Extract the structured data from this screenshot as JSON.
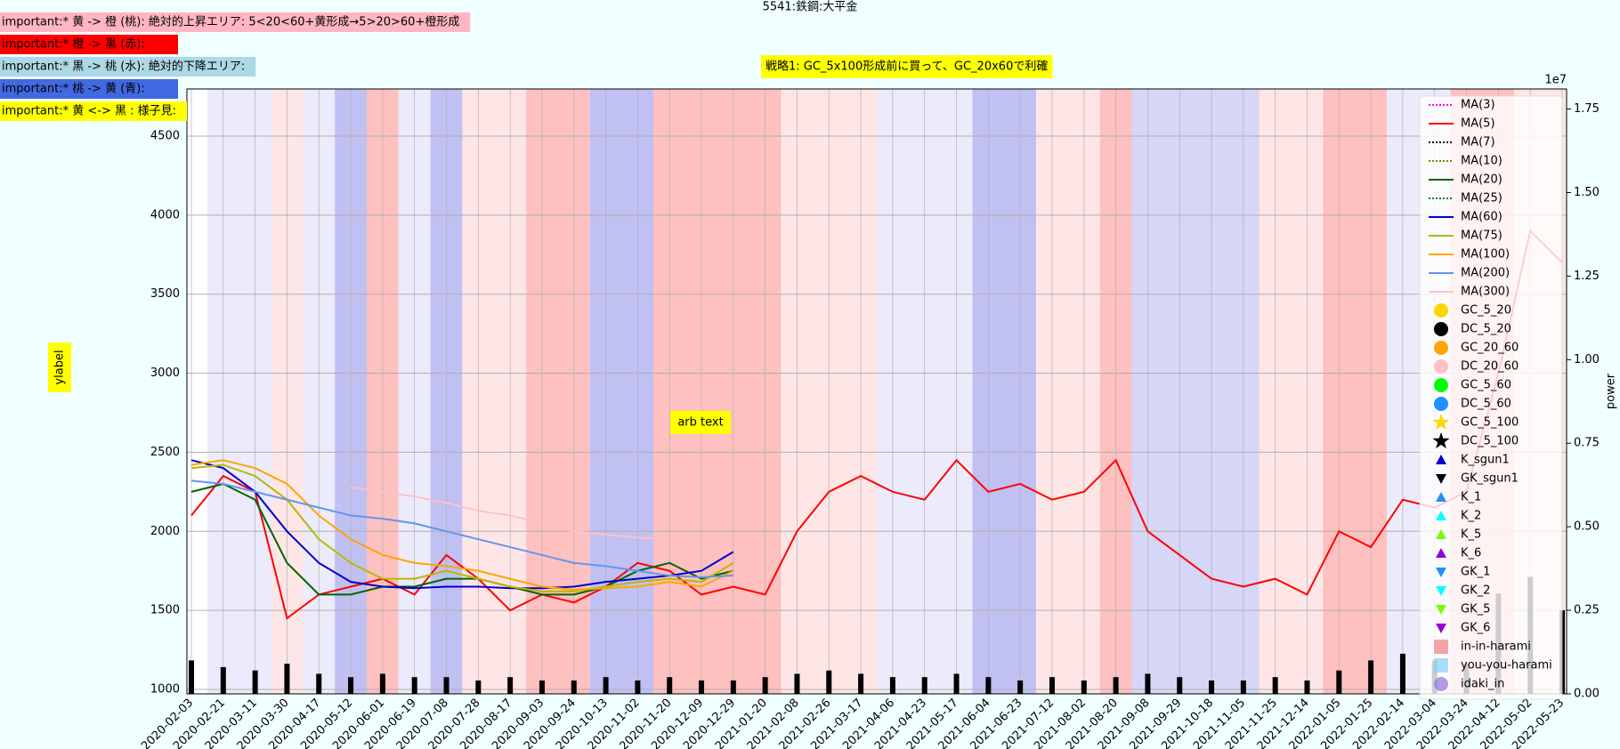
{
  "chart_data": {
    "type": "line",
    "title": "5541:鉄鋼:大平金",
    "annotations": [
      {
        "text": "important:* 黄 -> 橙 (桃): 絶対的上昇エリア: 5<20<60+黄形成→5>20>60+橙形成",
        "color": "#ffb6c1"
      },
      {
        "text": "important:* 橙 -> 黒 (赤):",
        "color": "#ff0000"
      },
      {
        "text": "important:* 黒 -> 桃 (水): 絶対的下降エリア:",
        "color": "#add8e6"
      },
      {
        "text": "important:* 桃 -> 黄 (青):",
        "color": "#4169e1"
      },
      {
        "text": "important:* 黄 <-> 黒 : 様子見:",
        "color": "#ffff00"
      }
    ],
    "strategy_text": "戦略1: GC_5x100形成前に買って、GC_20x60で利確",
    "arb_text": "arb text",
    "ylabel": "ylabel",
    "y2label": "power",
    "y2_offset_label": "1e7",
    "x": [
      "2020-02-03",
      "2020-02-21",
      "2020-03-11",
      "2020-03-30",
      "2020-04-17",
      "2020-05-12",
      "2020-06-01",
      "2020-06-19",
      "2020-07-08",
      "2020-07-28",
      "2020-08-17",
      "2020-09-03",
      "2020-09-24",
      "2020-10-13",
      "2020-11-02",
      "2020-11-20",
      "2020-12-09",
      "2020-12-29",
      "2021-01-20",
      "2021-02-08",
      "2021-02-26",
      "2021-03-17",
      "2021-04-06",
      "2021-04-23",
      "2021-05-17",
      "2021-06-04",
      "2021-06-23",
      "2021-07-12",
      "2021-08-02",
      "2021-08-20",
      "2021-09-08",
      "2021-09-29",
      "2021-10-18",
      "2021-11-05",
      "2021-11-25",
      "2021-12-14",
      "2022-01-05",
      "2022-01-25",
      "2022-02-14",
      "2022-03-04",
      "2022-03-24",
      "2022-04-12",
      "2022-05-02",
      "2022-05-23"
    ],
    "series": [
      {
        "name": "MA(3)",
        "color": "#ff00ff",
        "dash": "2,2",
        "values": [
          null,
          null,
          null,
          null,
          null,
          null,
          null,
          null,
          null,
          null,
          null,
          null,
          null,
          null,
          null,
          null,
          null,
          null,
          null,
          null,
          null,
          null,
          null,
          null,
          null,
          null,
          null,
          null,
          null,
          null,
          null,
          null,
          null,
          null,
          null,
          null,
          null,
          null,
          null,
          null,
          null,
          null,
          null,
          null
        ]
      },
      {
        "name": "MA(5)",
        "color": "#ff0000",
        "dash": "",
        "values": [
          2100,
          2350,
          2250,
          1450,
          1600,
          1650,
          1700,
          1600,
          1850,
          1700,
          1500,
          1600,
          1550,
          1650,
          1800,
          1750,
          1600,
          1650,
          1600,
          2000,
          2250,
          2350,
          2250,
          2200,
          2450,
          2250,
          2300,
          2200,
          2250,
          2450,
          2000,
          1850,
          1700,
          1650,
          1700,
          1600,
          2000,
          1900,
          2200,
          2150,
          2250,
          3000,
          3900,
          3700
        ]
      },
      {
        "name": "MA(7)",
        "color": "#000000",
        "dash": "2,2",
        "values": [
          null,
          null,
          null,
          null,
          null,
          null,
          null,
          null,
          null,
          null,
          null,
          null,
          null,
          null,
          null,
          null,
          null,
          null,
          null,
          null,
          null,
          null,
          null,
          null,
          null,
          null,
          null,
          null,
          null,
          null,
          null,
          null,
          null,
          null,
          null,
          null,
          null,
          null,
          null,
          null,
          null,
          null,
          null,
          null
        ]
      },
      {
        "name": "MA(10)",
        "color": "#808000",
        "dash": "2,2",
        "values": [
          null,
          null,
          null,
          null,
          null,
          null,
          null,
          null,
          null,
          null,
          null,
          null,
          null,
          null,
          null,
          null,
          null,
          null,
          null,
          null,
          null,
          null,
          null,
          null,
          null,
          null,
          null,
          null,
          null,
          null,
          null,
          null,
          null,
          null,
          null,
          null,
          null,
          null,
          null,
          null,
          null,
          null,
          null,
          null
        ]
      },
      {
        "name": "MA(20)",
        "color": "#006400",
        "dash": "",
        "values": [
          2250,
          2300,
          2200,
          1800,
          1600,
          1600,
          1650,
          1650,
          1700,
          1700,
          1650,
          1600,
          1600,
          1650,
          1750,
          1800,
          1700,
          1750,
          null,
          null,
          null,
          null,
          null,
          null,
          null,
          null,
          null,
          null,
          null,
          null,
          null,
          null,
          null,
          null,
          null,
          null,
          null,
          null,
          null,
          null,
          null,
          null,
          null,
          null
        ]
      },
      {
        "name": "MA(25)",
        "color": "#008000",
        "dash": "2,2",
        "values": [
          null,
          null,
          null,
          null,
          null,
          null,
          null,
          null,
          null,
          null,
          null,
          null,
          null,
          null,
          null,
          null,
          null,
          null,
          null,
          null,
          null,
          null,
          null,
          null,
          null,
          null,
          null,
          null,
          null,
          null,
          null,
          null,
          null,
          null,
          null,
          null,
          null,
          null,
          null,
          null,
          null,
          null,
          null,
          null
        ]
      },
      {
        "name": "MA(60)",
        "color": "#0000cd",
        "dash": "",
        "values": [
          2450,
          2400,
          2250,
          2000,
          1800,
          1680,
          1650,
          1640,
          1650,
          1650,
          1640,
          1640,
          1650,
          1680,
          1700,
          1720,
          1750,
          1870,
          null,
          null,
          null,
          null,
          null,
          null,
          null,
          null,
          null,
          null,
          null,
          null,
          null,
          null,
          null,
          null,
          null,
          null,
          null,
          null,
          null,
          null,
          null,
          null,
          null,
          null
        ]
      },
      {
        "name": "MA(75)",
        "color": "#b8b800",
        "dash": "",
        "values": [
          2400,
          2420,
          2350,
          2200,
          1950,
          1800,
          1700,
          1700,
          1750,
          1700,
          1650,
          1620,
          1620,
          1650,
          1680,
          1700,
          1680,
          1800,
          null,
          null,
          null,
          null,
          null,
          null,
          null,
          null,
          null,
          null,
          null,
          null,
          null,
          null,
          null,
          null,
          null,
          null,
          null,
          null,
          null,
          null,
          null,
          null,
          null,
          null
        ]
      },
      {
        "name": "MA(100)",
        "color": "#ffa500",
        "dash": "",
        "values": [
          2420,
          2450,
          2400,
          2300,
          2100,
          1950,
          1850,
          1800,
          1780,
          1750,
          1700,
          1650,
          1630,
          1640,
          1650,
          1680,
          1650,
          1750,
          null,
          null,
          null,
          null,
          null,
          null,
          null,
          null,
          null,
          null,
          null,
          null,
          null,
          null,
          null,
          null,
          null,
          null,
          null,
          null,
          null,
          null,
          null,
          null,
          null,
          null
        ]
      },
      {
        "name": "MA(200)",
        "color": "#6495ed",
        "dash": "",
        "values": [
          2320,
          2300,
          2250,
          2200,
          2150,
          2100,
          2080,
          2050,
          2000,
          1950,
          1900,
          1850,
          1800,
          1780,
          1750,
          1720,
          1710,
          1720,
          null,
          null,
          null,
          null,
          null,
          null,
          null,
          null,
          null,
          null,
          null,
          null,
          null,
          null,
          null,
          null,
          null,
          null,
          null,
          null,
          null,
          null,
          null,
          null,
          null,
          null
        ]
      },
      {
        "name": "MA(300)",
        "color": "#ffc0cb",
        "dash": "",
        "values": [
          null,
          null,
          null,
          null,
          null,
          2280,
          2250,
          2220,
          2180,
          2130,
          2100,
          2050,
          2000,
          1980,
          1960,
          1950,
          1950,
          1950,
          null,
          null,
          null,
          null,
          null,
          null,
          null,
          null,
          null,
          null,
          null,
          null,
          null,
          null,
          null,
          null,
          null,
          null,
          null,
          null,
          null,
          null,
          null,
          null,
          null,
          null
        ]
      }
    ],
    "volume": {
      "color": "#000000",
      "axis": "y2",
      "values": [
        0.1,
        0.08,
        0.07,
        0.09,
        0.06,
        0.05,
        0.06,
        0.05,
        0.05,
        0.04,
        0.05,
        0.04,
        0.04,
        0.05,
        0.04,
        0.05,
        0.04,
        0.04,
        0.05,
        0.06,
        0.07,
        0.06,
        0.05,
        0.05,
        0.06,
        0.05,
        0.04,
        0.05,
        0.04,
        0.05,
        0.06,
        0.05,
        0.04,
        0.04,
        0.05,
        0.04,
        0.07,
        0.1,
        0.12,
        0.1,
        0.09,
        0.3,
        0.35,
        0.25
      ]
    },
    "markers_legend": [
      {
        "name": "GC_5_20",
        "color": "#ffd700",
        "shape": "circle"
      },
      {
        "name": "DC_5_20",
        "color": "#000000",
        "shape": "circle"
      },
      {
        "name": "GC_20_60",
        "color": "#ffa500",
        "shape": "circle"
      },
      {
        "name": "DC_20_60",
        "color": "#ffc0cb",
        "shape": "circle"
      },
      {
        "name": "GC_5_60",
        "color": "#00ff00",
        "shape": "circle"
      },
      {
        "name": "DC_5_60",
        "color": "#1e90ff",
        "shape": "circle"
      },
      {
        "name": "GC_5_100",
        "color": "#ffd700",
        "shape": "star"
      },
      {
        "name": "DC_5_100",
        "color": "#000000",
        "shape": "star"
      },
      {
        "name": "K_sgun1",
        "color": "#0000cd",
        "shape": "up"
      },
      {
        "name": "GK_sgun1",
        "color": "#000000",
        "shape": "down"
      },
      {
        "name": "K_1",
        "color": "#1e90ff",
        "shape": "up"
      },
      {
        "name": "K_2",
        "color": "#00ffff",
        "shape": "up"
      },
      {
        "name": "K_5",
        "color": "#7cfc00",
        "shape": "up"
      },
      {
        "name": "K_6",
        "color": "#9400d3",
        "shape": "up"
      },
      {
        "name": "GK_1",
        "color": "#1e90ff",
        "shape": "down"
      },
      {
        "name": "GK_2",
        "color": "#00ffff",
        "shape": "down"
      },
      {
        "name": "GK_5",
        "color": "#7cfc00",
        "shape": "down"
      },
      {
        "name": "GK_6",
        "color": "#9400d3",
        "shape": "down"
      },
      {
        "name": "in-in-harami",
        "color": "#f08080",
        "shape": "square"
      },
      {
        "name": "you-you-harami",
        "color": "#87cefa",
        "shape": "square"
      },
      {
        "name": "idaki_in",
        "color": "#9370db",
        "shape": "circle"
      }
    ],
    "bands": [
      {
        "from": 1,
        "to": 2,
        "color": "#e6e6fa"
      },
      {
        "from": 3,
        "to": 3,
        "color": "#ffe0e0"
      },
      {
        "from": 4,
        "to": 4,
        "color": "#e6e6fa"
      },
      {
        "from": 5,
        "to": 5,
        "color": "#b0b0f0"
      },
      {
        "from": 6,
        "to": 6,
        "color": "#ffb0b0"
      },
      {
        "from": 7,
        "to": 7,
        "color": "#e6e6fa"
      },
      {
        "from": 8,
        "to": 8,
        "color": "#b0b0f0"
      },
      {
        "from": 9,
        "to": 10,
        "color": "#ffe0e0"
      },
      {
        "from": 11,
        "to": 12,
        "color": "#ffb0b0"
      },
      {
        "from": 13,
        "to": 14,
        "color": "#b0b0f0"
      },
      {
        "from": 15,
        "to": 18,
        "color": "#ffb0b0"
      },
      {
        "from": 19,
        "to": 21,
        "color": "#ffe0e0"
      },
      {
        "from": 22,
        "to": 24,
        "color": "#e6e6fa"
      },
      {
        "from": 25,
        "to": 26,
        "color": "#b0b0f0"
      },
      {
        "from": 27,
        "to": 28,
        "color": "#ffe0e0"
      },
      {
        "from": 29,
        "to": 29,
        "color": "#ffb0b0"
      },
      {
        "from": 30,
        "to": 33,
        "color": "#ccccf5"
      },
      {
        "from": 34,
        "to": 35,
        "color": "#ffe0e0"
      },
      {
        "from": 36,
        "to": 37,
        "color": "#ffb0b0"
      },
      {
        "from": 38,
        "to": 39,
        "color": "#e6e6fa"
      },
      {
        "from": 40,
        "to": 41,
        "color": "#ffb0b0"
      },
      {
        "from": 42,
        "to": 43,
        "color": "#ffe0e0"
      }
    ],
    "ylim": [
      972,
      4798
    ],
    "yticks": [
      1000,
      1500,
      2000,
      2500,
      3000,
      3500,
      4000,
      4500
    ],
    "y2lim": [
      0,
      1.81
    ],
    "y2ticks": [
      {
        "value": 0,
        "label": "0.00"
      },
      {
        "value": 0.25,
        "label": "0.25"
      },
      {
        "value": 0.5,
        "label": "0.50"
      },
      {
        "value": 0.75,
        "label": "0.75"
      },
      {
        "value": 1,
        "label": "1.00"
      },
      {
        "value": 1.25,
        "label": "1.25"
      },
      {
        "value": 1.5,
        "label": "1.50"
      },
      {
        "value": 1.75,
        "label": "1.75"
      }
    ],
    "grid": true
  }
}
